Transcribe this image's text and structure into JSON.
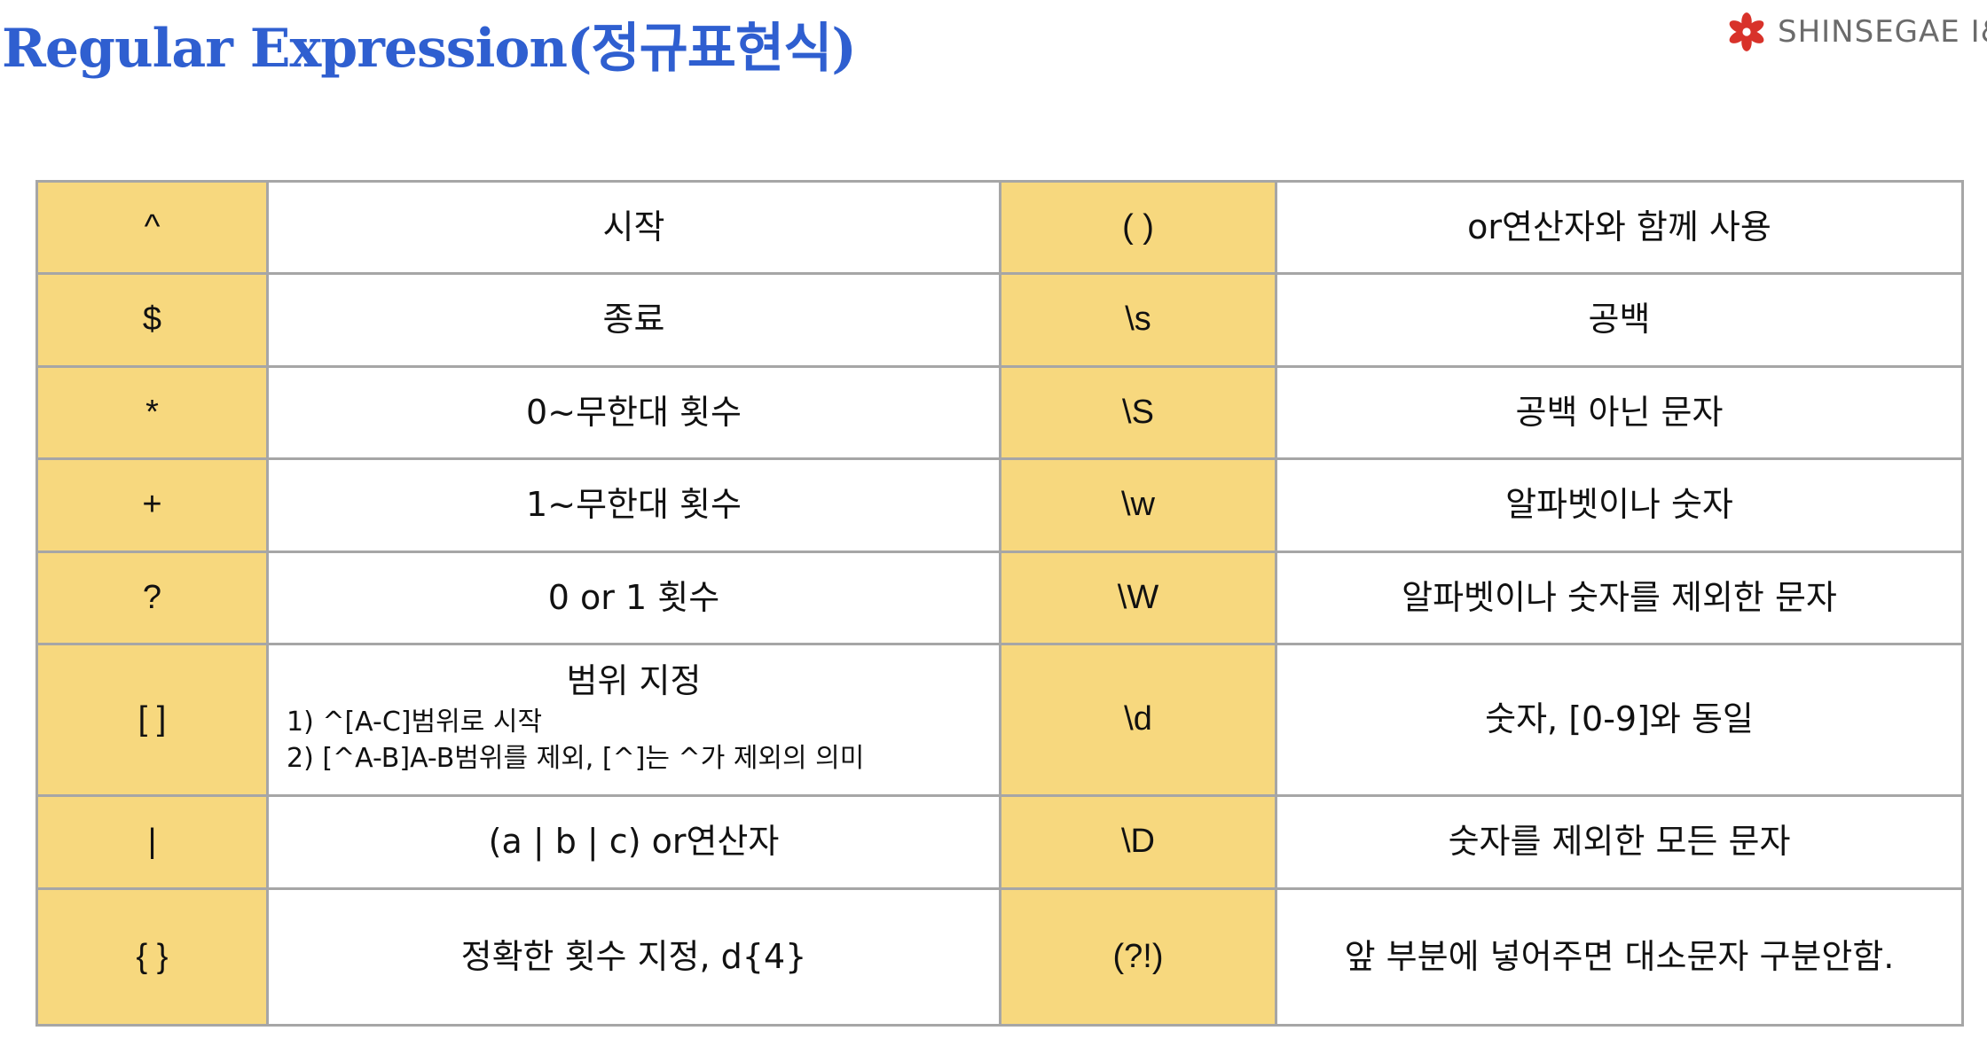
{
  "header": {
    "title": "Regular Expression(정규표현식)",
    "logo_text": "SHINSEGAE I&C",
    "logo_icon": "flower-icon"
  },
  "colors": {
    "title": "#2f5fd0",
    "symbol_cell_bg": "#f7d87e",
    "border": "#a6a6a6",
    "logo_red": "#d8322a"
  },
  "table": {
    "rows": [
      {
        "left_symbol": "^",
        "left_desc": "시작",
        "right_symbol": "( )",
        "right_desc": "or연산자와 함께 사용"
      },
      {
        "left_symbol": "$",
        "left_desc": "종료",
        "right_symbol": "\\s",
        "right_desc": "공백"
      },
      {
        "left_symbol": "*",
        "left_desc": "0~무한대 횟수",
        "right_symbol": "\\S",
        "right_desc": "공백 아닌 문자"
      },
      {
        "left_symbol": "+",
        "left_desc": "1~무한대 횟수",
        "right_symbol": "\\w",
        "right_desc": "알파벳이나 숫자"
      },
      {
        "left_symbol": "?",
        "left_desc": "0 or 1 횟수",
        "right_symbol": "\\W",
        "right_desc": "알파벳이나 숫자를 제외한 문자"
      },
      {
        "left_symbol": "[ ]",
        "left_desc": "범위 지정",
        "left_detail_1": "1) ^[A-C]범위로 시작",
        "left_detail_2": "2) [^A-B]A-B범위를 제외, [^]는 ^가 제외의 의미",
        "right_symbol": "\\d",
        "right_desc": "숫자, [0-9]와 동일"
      },
      {
        "left_symbol": "|",
        "left_desc": "(a | b | c) or연산자",
        "right_symbol": "\\D",
        "right_desc": "숫자를 제외한 모든 문자"
      },
      {
        "left_symbol": "{ }",
        "left_desc": "정확한 횟수 지정, d{4}",
        "right_symbol": "(?!)",
        "right_desc": "앞 부분에 넣어주면 대소문자 구분안함."
      }
    ]
  }
}
